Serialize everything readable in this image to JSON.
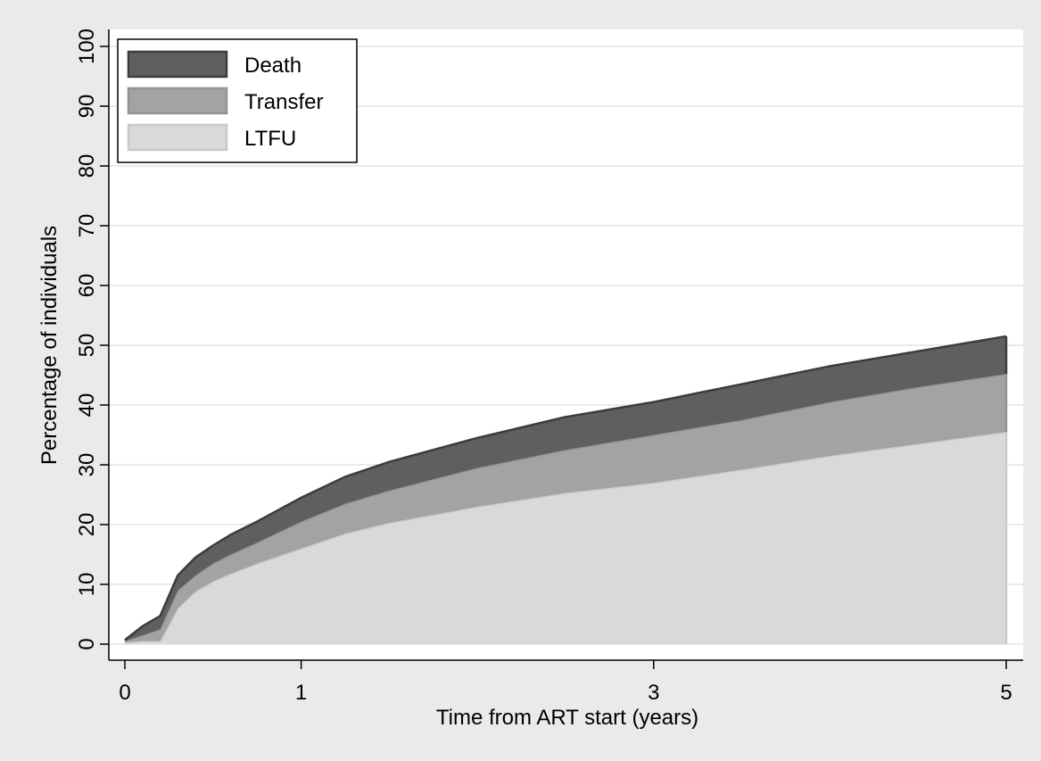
{
  "chart_data": {
    "type": "stacked_area",
    "xlabel": "Time from ART start (years)",
    "ylabel": "Percentage of individuals",
    "x": [
      0,
      0.1,
      0.2,
      0.3,
      0.4,
      0.5,
      0.6,
      0.75,
      1,
      1.25,
      1.5,
      2,
      2.5,
      3,
      3.5,
      4,
      4.5,
      5
    ],
    "series": [
      {
        "name": "LTFU",
        "color": "#d9d9d9",
        "values": [
          0.3,
          0.5,
          0.5,
          6,
          8.8,
          10.5,
          11.8,
          13.5,
          16,
          18.5,
          20.3,
          23,
          25.3,
          27,
          29.2,
          31.5,
          33.5,
          35.5
        ]
      },
      {
        "name": "Transfer",
        "color": "#a3a3a3",
        "values": [
          0.2,
          1,
          2,
          3,
          2.7,
          3,
          3.2,
          3.5,
          4.5,
          5,
          5.4,
          6.5,
          7.2,
          8,
          8.3,
          9,
          9.5,
          9.7
        ]
      },
      {
        "name": "Death",
        "color": "#5f5f5f",
        "values": [
          0.2,
          1.5,
          2.2,
          2.5,
          3,
          3,
          3.3,
          3.5,
          4,
          4.5,
          4.8,
          5,
          5.5,
          5.5,
          6,
          6,
          6,
          6.3
        ]
      }
    ],
    "xlim": [
      0,
      5
    ],
    "xticks": [
      0,
      1,
      3,
      5
    ],
    "ylim": [
      0,
      100
    ],
    "yticks": [
      0,
      10,
      20,
      30,
      40,
      50,
      60,
      70,
      80,
      90,
      100
    ],
    "grid": true,
    "legend": "top-left"
  }
}
